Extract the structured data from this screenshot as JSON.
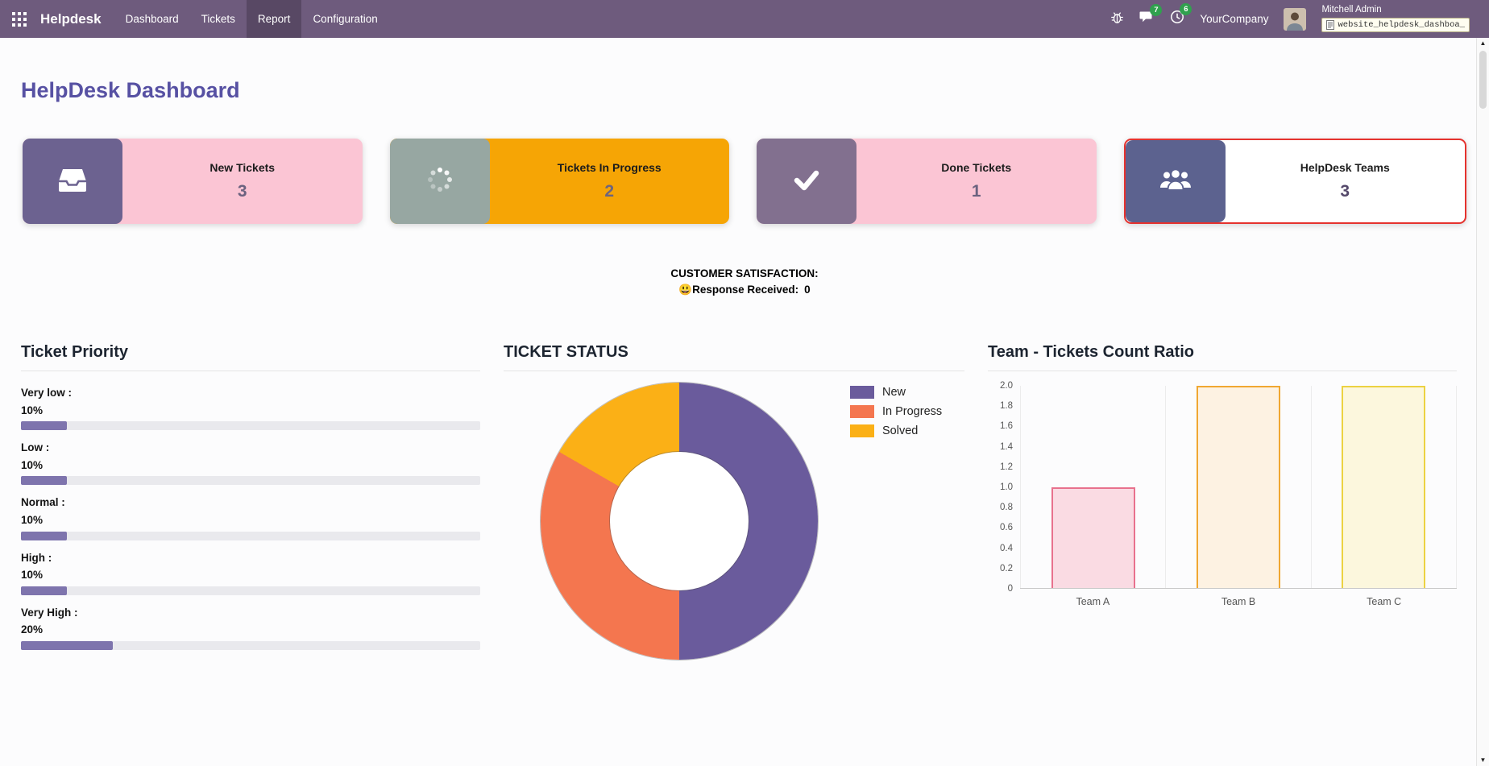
{
  "nav": {
    "brand": "Helpdesk",
    "items": [
      {
        "label": "Dashboard"
      },
      {
        "label": "Tickets"
      },
      {
        "label": "Report",
        "active": true
      },
      {
        "label": "Configuration"
      }
    ],
    "message_badge": "7",
    "activity_badge": "6",
    "company": "YourCompany",
    "user_name": "Mitchell Admin",
    "debug_box": "website_helpdesk_dashboa_"
  },
  "page": {
    "title": "HelpDesk Dashboard"
  },
  "kpi_cards": [
    {
      "label": "New Tickets",
      "value": "3",
      "icon": "inbox-icon",
      "body_color": "#fbc5d4",
      "icon_bg": "#6c6290",
      "value_color": "#6b627f",
      "highlighted": false
    },
    {
      "label": "Tickets In Progress",
      "value": "2",
      "icon": "spinner-icon",
      "body_color": "#f6a505",
      "icon_bg": "#97a7a2",
      "value_color": "#6d657f",
      "highlighted": false
    },
    {
      "label": "Done Tickets",
      "value": "1",
      "icon": "check-icon",
      "body_color": "#fbc5d4",
      "icon_bg": "#82708f",
      "value_color": "#6b627f",
      "highlighted": false
    },
    {
      "label": "HelpDesk Teams",
      "value": "3",
      "icon": "team-icon",
      "body_color": "#ffffff",
      "icon_bg": "#5c628f",
      "value_color": "#55496b",
      "highlighted": true,
      "highlight_color": "#e5322e"
    }
  ],
  "satisfaction": {
    "title": "CUSTOMER SATISFACTION:",
    "response_label": "😃Response Received:",
    "response_value": "0"
  },
  "chart_data": [
    {
      "type": "bar",
      "orientation": "horizontal",
      "title": "Ticket Priority",
      "categories": [
        "Very low",
        "Low",
        "Normal",
        "High",
        "Very High"
      ],
      "values": [
        10,
        10,
        10,
        10,
        20
      ],
      "value_suffix": "%",
      "xlim": [
        0,
        100
      ],
      "bar_fill": "#7e74ad",
      "bar_track": "#e9e9ed"
    },
    {
      "type": "pie",
      "donut": true,
      "title": "TICKET STATUS",
      "categories": [
        "New",
        "In Progress",
        "Solved"
      ],
      "values": [
        3,
        2,
        1
      ],
      "colors": [
        "#6a5b9c",
        "#f4764f",
        "#fbb016"
      ],
      "legend_position": "right"
    },
    {
      "type": "bar",
      "title": "Team - Tickets Count Ratio",
      "categories": [
        "Team A",
        "Team B",
        "Team C"
      ],
      "values": [
        1,
        2,
        2
      ],
      "ylim": [
        0,
        2
      ],
      "yticks": [
        "2.0",
        "1.8",
        "1.6",
        "1.4",
        "1.2",
        "1.0",
        "0.8",
        "0.6",
        "0.4",
        "0.2",
        "0"
      ],
      "grid": true,
      "bar_colors": [
        {
          "fill": "#fadbe3",
          "border": "#e8718d"
        },
        {
          "fill": "#fdf2e2",
          "border": "#f0a732"
        },
        {
          "fill": "#fcf7dd",
          "border": "#ecd242"
        }
      ]
    }
  ]
}
